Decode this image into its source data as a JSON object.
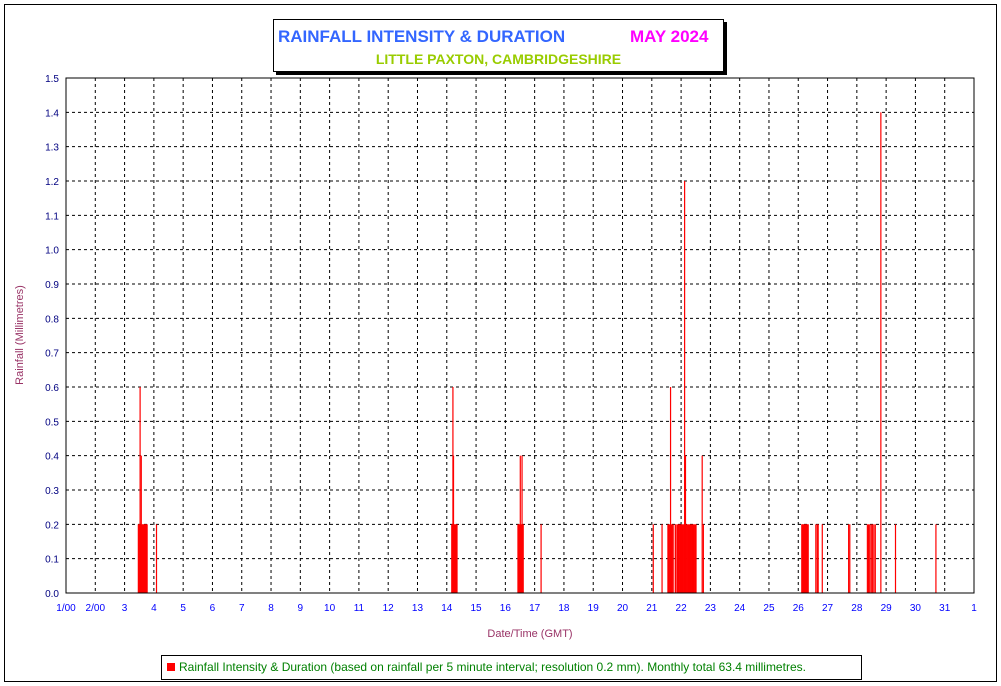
{
  "title": {
    "main": "RAINFALL INTENSITY & DURATION",
    "month": "MAY 2024",
    "subtitle": "LITTLE PAXTON, CAMBRIDGESHIRE"
  },
  "legend": {
    "text": "Rainfall Intensity & Duration (based on rainfall per 5 minute interval; resolution 0.2 mm). Monthly total 63.4 millimetres."
  },
  "colors": {
    "bar": "#ff0000",
    "title_main": "#3366ff",
    "title_month": "#ff00ff",
    "subtitle": "#99cc00",
    "legend_text": "#008000",
    "axis_label": "#993366",
    "tick_label_x": "#0000ff",
    "tick_label_y": "#000080"
  },
  "chart_data": {
    "type": "bar",
    "xlabel": "Date/Time (GMT)",
    "ylabel": "Rainfall (Millimetres)",
    "ylim": [
      0,
      1.5
    ],
    "xlim": [
      1.0,
      32.0
    ],
    "grid": true,
    "x_ticks": [
      {
        "value": 1,
        "label": "1/00"
      },
      {
        "value": 2,
        "label": "2/00"
      },
      {
        "value": 3,
        "label": "3"
      },
      {
        "value": 4,
        "label": "4"
      },
      {
        "value": 5,
        "label": "5"
      },
      {
        "value": 6,
        "label": "6"
      },
      {
        "value": 7,
        "label": "7"
      },
      {
        "value": 8,
        "label": "8"
      },
      {
        "value": 9,
        "label": "9"
      },
      {
        "value": 10,
        "label": "10"
      },
      {
        "value": 11,
        "label": "11"
      },
      {
        "value": 12,
        "label": "12"
      },
      {
        "value": 13,
        "label": "13"
      },
      {
        "value": 14,
        "label": "14"
      },
      {
        "value": 15,
        "label": "15"
      },
      {
        "value": 16,
        "label": "16"
      },
      {
        "value": 17,
        "label": "17"
      },
      {
        "value": 18,
        "label": "18"
      },
      {
        "value": 19,
        "label": "19"
      },
      {
        "value": 20,
        "label": "20"
      },
      {
        "value": 21,
        "label": "21"
      },
      {
        "value": 22,
        "label": "22"
      },
      {
        "value": 23,
        "label": "23"
      },
      {
        "value": 24,
        "label": "24"
      },
      {
        "value": 25,
        "label": "25"
      },
      {
        "value": 26,
        "label": "26"
      },
      {
        "value": 27,
        "label": "27"
      },
      {
        "value": 28,
        "label": "28"
      },
      {
        "value": 29,
        "label": "29"
      },
      {
        "value": 30,
        "label": "30"
      },
      {
        "value": 31,
        "label": "31"
      },
      {
        "value": 32,
        "label": "1"
      }
    ],
    "y_ticks": [
      "0.0",
      "0.1",
      "0.2",
      "0.3",
      "0.4",
      "0.5",
      "0.6",
      "0.7",
      "0.8",
      "0.9",
      "1.0",
      "1.1",
      "1.2",
      "1.3",
      "1.4",
      "1.5"
    ],
    "series": [
      {
        "type": "bar",
        "points": [
          {
            "x": 3.47,
            "y": 0.2
          },
          {
            "x": 3.49,
            "y": 0.2
          },
          {
            "x": 3.51,
            "y": 0.2
          },
          {
            "x": 3.53,
            "y": 0.6
          },
          {
            "x": 3.55,
            "y": 0.2
          },
          {
            "x": 3.57,
            "y": 0.4
          },
          {
            "x": 3.59,
            "y": 0.2
          },
          {
            "x": 3.61,
            "y": 0.2
          },
          {
            "x": 3.63,
            "y": 0.2
          },
          {
            "x": 3.65,
            "y": 0.2
          },
          {
            "x": 3.67,
            "y": 0.2
          },
          {
            "x": 3.69,
            "y": 0.2
          },
          {
            "x": 3.71,
            "y": 0.2
          },
          {
            "x": 3.73,
            "y": 0.2
          },
          {
            "x": 3.75,
            "y": 0.2
          },
          {
            "x": 3.77,
            "y": 0.2
          },
          {
            "x": 4.09,
            "y": 0.2
          },
          {
            "x": 14.17,
            "y": 0.2
          },
          {
            "x": 14.19,
            "y": 0.2
          },
          {
            "x": 14.21,
            "y": 0.6
          },
          {
            "x": 14.23,
            "y": 0.4
          },
          {
            "x": 14.25,
            "y": 0.2
          },
          {
            "x": 14.27,
            "y": 0.2
          },
          {
            "x": 14.29,
            "y": 0.2
          },
          {
            "x": 14.31,
            "y": 0.2
          },
          {
            "x": 14.33,
            "y": 0.2
          },
          {
            "x": 14.35,
            "y": 0.2
          },
          {
            "x": 16.43,
            "y": 0.2
          },
          {
            "x": 16.45,
            "y": 0.2
          },
          {
            "x": 16.47,
            "y": 0.2
          },
          {
            "x": 16.49,
            "y": 0.2
          },
          {
            "x": 16.51,
            "y": 0.4
          },
          {
            "x": 16.53,
            "y": 0.2
          },
          {
            "x": 16.55,
            "y": 0.2
          },
          {
            "x": 16.57,
            "y": 0.4
          },
          {
            "x": 16.59,
            "y": 0.2
          },
          {
            "x": 16.61,
            "y": 0.2
          },
          {
            "x": 17.22,
            "y": 0.2
          },
          {
            "x": 21.05,
            "y": 0.2
          },
          {
            "x": 21.35,
            "y": 0.2
          },
          {
            "x": 21.55,
            "y": 0.2
          },
          {
            "x": 21.58,
            "y": 0.2
          },
          {
            "x": 21.61,
            "y": 0.2
          },
          {
            "x": 21.64,
            "y": 0.6
          },
          {
            "x": 21.67,
            "y": 0.2
          },
          {
            "x": 21.7,
            "y": 0.2
          },
          {
            "x": 21.73,
            "y": 0.2
          },
          {
            "x": 21.8,
            "y": 0.2
          },
          {
            "x": 21.83,
            "y": 0.2
          },
          {
            "x": 21.88,
            "y": 0.2
          },
          {
            "x": 21.91,
            "y": 0.2
          },
          {
            "x": 21.94,
            "y": 0.2
          },
          {
            "x": 21.97,
            "y": 0.2
          },
          {
            "x": 22.0,
            "y": 0.2
          },
          {
            "x": 22.03,
            "y": 0.2
          },
          {
            "x": 22.06,
            "y": 0.2
          },
          {
            "x": 22.09,
            "y": 0.2
          },
          {
            "x": 22.12,
            "y": 1.2
          },
          {
            "x": 22.15,
            "y": 0.4
          },
          {
            "x": 22.18,
            "y": 0.2
          },
          {
            "x": 22.21,
            "y": 0.2
          },
          {
            "x": 22.24,
            "y": 0.2
          },
          {
            "x": 22.27,
            "y": 0.2
          },
          {
            "x": 22.3,
            "y": 0.2
          },
          {
            "x": 22.33,
            "y": 0.2
          },
          {
            "x": 22.36,
            "y": 0.2
          },
          {
            "x": 22.39,
            "y": 0.2
          },
          {
            "x": 22.42,
            "y": 0.2
          },
          {
            "x": 22.45,
            "y": 0.2
          },
          {
            "x": 22.48,
            "y": 0.2
          },
          {
            "x": 22.51,
            "y": 0.2
          },
          {
            "x": 22.72,
            "y": 0.4
          },
          {
            "x": 22.76,
            "y": 0.2
          },
          {
            "x": 26.12,
            "y": 0.2
          },
          {
            "x": 26.14,
            "y": 0.2
          },
          {
            "x": 26.16,
            "y": 0.2
          },
          {
            "x": 26.18,
            "y": 0.2
          },
          {
            "x": 26.2,
            "y": 0.2
          },
          {
            "x": 26.22,
            "y": 0.2
          },
          {
            "x": 26.24,
            "y": 0.2
          },
          {
            "x": 26.26,
            "y": 0.2
          },
          {
            "x": 26.28,
            "y": 0.2
          },
          {
            "x": 26.3,
            "y": 0.2
          },
          {
            "x": 26.32,
            "y": 0.2
          },
          {
            "x": 26.34,
            "y": 0.2
          },
          {
            "x": 26.6,
            "y": 0.2
          },
          {
            "x": 26.65,
            "y": 0.2
          },
          {
            "x": 26.68,
            "y": 0.2
          },
          {
            "x": 26.82,
            "y": 0.2
          },
          {
            "x": 27.72,
            "y": 0.2
          },
          {
            "x": 27.76,
            "y": 0.2
          },
          {
            "x": 28.36,
            "y": 0.2
          },
          {
            "x": 28.4,
            "y": 0.2
          },
          {
            "x": 28.44,
            "y": 0.2
          },
          {
            "x": 28.49,
            "y": 0.2
          },
          {
            "x": 28.53,
            "y": 0.2
          },
          {
            "x": 28.58,
            "y": 0.2
          },
          {
            "x": 28.63,
            "y": 0.2
          },
          {
            "x": 28.82,
            "y": 1.4
          },
          {
            "x": 29.32,
            "y": 0.2
          },
          {
            "x": 30.7,
            "y": 0.2
          }
        ]
      }
    ]
  }
}
